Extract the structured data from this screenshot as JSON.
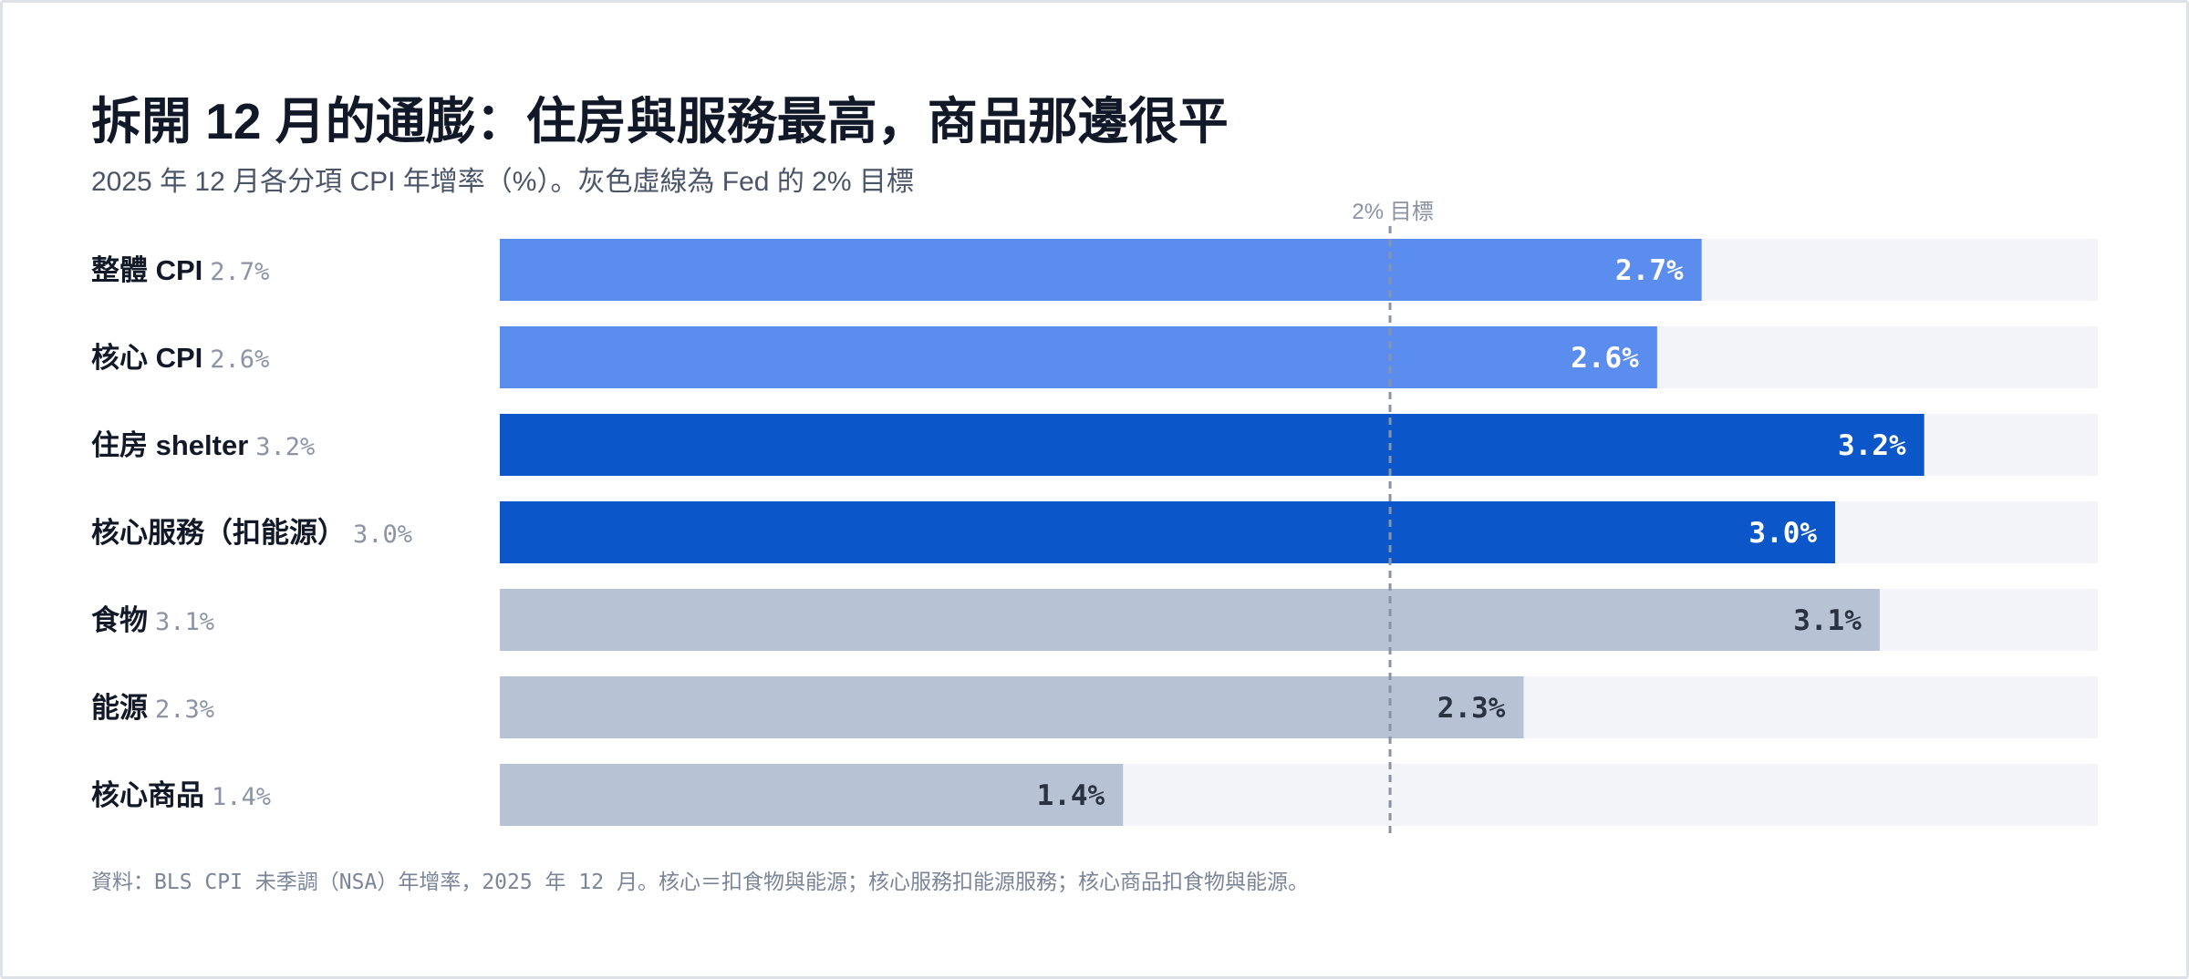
{
  "title": "拆開 12 月的通膨：住房與服務最高，商品那邊很平",
  "subtitle": "2025 年 12 月各分項 CPI 年增率（%）。灰色虛線為 Fed 的 2% 目標",
  "source": "資料：BLS CPI 未季調（NSA）年增率，2025 年 12 月。核心＝扣食物與能源；核心服務扣能源服務；核心商品扣食物與能源。",
  "colors": {
    "track": "#f3f4f7",
    "headline": "#5b8def",
    "services": "#0b57c9",
    "goods": "#b7c2d4",
    "label_light": "#ffffff",
    "label_dark": "#2b3342",
    "category_text": "#111827",
    "value_text": "#8a94a6",
    "target_line": "#8a93a6"
  },
  "chart_data": {
    "type": "bar",
    "orientation": "horizontal",
    "unit": "%",
    "xlim": [
      0,
      3.59
    ],
    "reference_line": {
      "value": 2.0,
      "label": "2% 目標"
    },
    "bars": [
      {
        "label": "整體 CPI",
        "value": 2.7,
        "value_text": "2.7%",
        "color_key": "headline",
        "label_color_key": "label_light"
      },
      {
        "label": "核心 CPI",
        "value": 2.6,
        "value_text": "2.6%",
        "color_key": "headline",
        "label_color_key": "label_light"
      },
      {
        "label": "住房 shelter",
        "value": 3.2,
        "value_text": "3.2%",
        "color_key": "services",
        "label_color_key": "label_light"
      },
      {
        "label": "核心服務（扣能源）",
        "value": 3.0,
        "value_text": "3.0%",
        "color_key": "services",
        "label_color_key": "label_light"
      },
      {
        "label": "食物",
        "value": 3.1,
        "value_text": "3.1%",
        "color_key": "goods",
        "label_color_key": "label_dark"
      },
      {
        "label": "能源",
        "value": 2.3,
        "value_text": "2.3%",
        "color_key": "goods",
        "label_color_key": "label_dark"
      },
      {
        "label": "核心商品",
        "value": 1.4,
        "value_text": "1.4%",
        "color_key": "goods",
        "label_color_key": "label_dark"
      }
    ]
  }
}
